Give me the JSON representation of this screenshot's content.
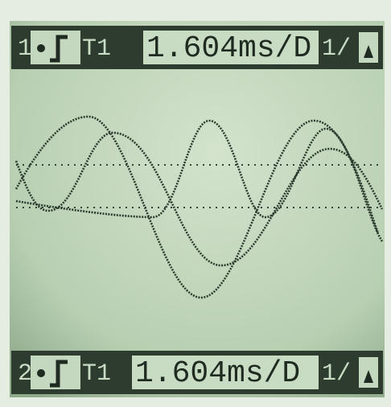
{
  "header": {
    "channel": "1",
    "trigger_source": "T1",
    "timebase": "1.604ms/D",
    "trigger_level": "1/"
  },
  "footer": {
    "channel": "2",
    "trigger_source": "T1",
    "timebase": "1.604ms/D",
    "trigger_level": "1/"
  }
}
